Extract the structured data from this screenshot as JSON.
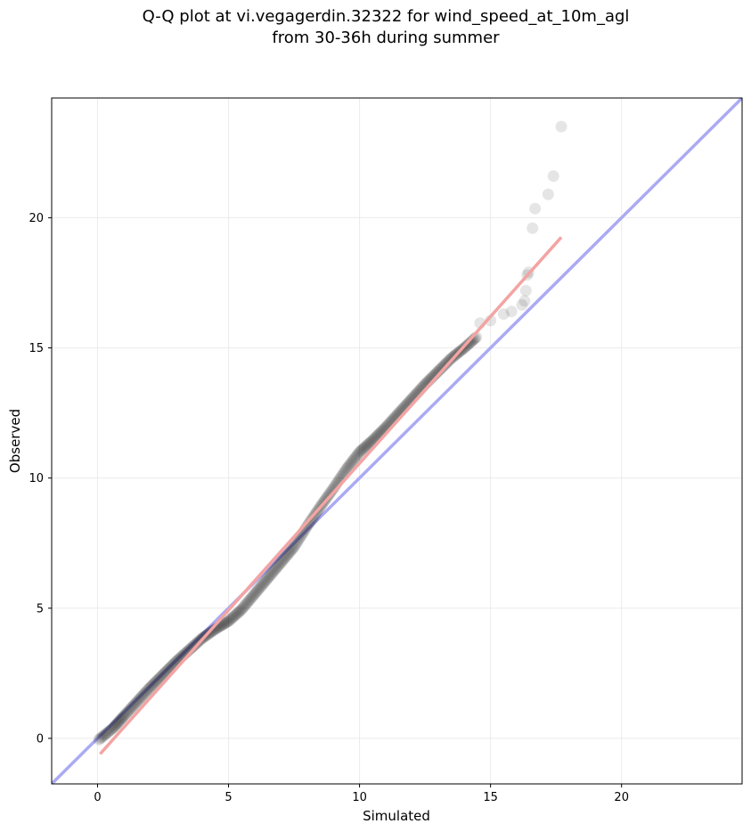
{
  "chart_data": {
    "type": "scatter",
    "title": "Q-Q plot at vi.vegagerdin.32322 for wind_speed_at_10m_agl",
    "subtitle": "from 30-36h during summer",
    "xlabel": "Simulated",
    "ylabel": "Observed",
    "xlim": [
      -1.75,
      24.6
    ],
    "ylim": [
      -1.75,
      24.6
    ],
    "xticks": [
      0,
      5,
      10,
      15,
      20
    ],
    "yticks": [
      0,
      5,
      10,
      15,
      20
    ],
    "grid": true,
    "colors": {
      "points": "#000000",
      "identity_line": "#aaaaf4",
      "fit_line": "#f4a3a3",
      "grid": "#ebebeb"
    },
    "identity_line": {
      "slope": 1,
      "intercept": 0
    },
    "fit_line": {
      "x": [
        0.1,
        17.7
      ],
      "y": [
        -0.6,
        19.25
      ]
    },
    "point_segments": [
      [
        [
          0.05,
          -0.05
        ],
        [
          0.6,
          0.4
        ],
        [
          1.0,
          0.85
        ],
        [
          1.5,
          1.4
        ],
        [
          2.0,
          1.95
        ],
        [
          2.5,
          2.45
        ],
        [
          3.0,
          2.95
        ],
        [
          3.5,
          3.4
        ],
        [
          4.0,
          3.85
        ],
        [
          4.5,
          4.2
        ],
        [
          5.0,
          4.5
        ],
        [
          5.5,
          4.95
        ],
        [
          6.0,
          5.55
        ],
        [
          6.5,
          6.15
        ],
        [
          7.0,
          6.75
        ],
        [
          7.5,
          7.35
        ],
        [
          8.0,
          8.15
        ],
        [
          8.5,
          8.9
        ],
        [
          9.0,
          9.6
        ],
        [
          9.5,
          10.35
        ],
        [
          10.0,
          11.0
        ],
        [
          10.5,
          11.45
        ],
        [
          11.0,
          11.95
        ],
        [
          11.5,
          12.5
        ],
        [
          12.0,
          13.05
        ],
        [
          12.5,
          13.6
        ],
        [
          13.0,
          14.1
        ],
        [
          13.5,
          14.6
        ],
        [
          14.0,
          15.0
        ],
        [
          14.5,
          15.45
        ]
      ]
    ],
    "sparse_points": [
      [
        14.6,
        15.95
      ],
      [
        15.0,
        16.05
      ],
      [
        15.5,
        16.3
      ],
      [
        15.8,
        16.4
      ],
      [
        16.2,
        16.65
      ],
      [
        16.3,
        16.8
      ],
      [
        16.35,
        17.2
      ],
      [
        16.4,
        17.8
      ],
      [
        16.45,
        17.9
      ],
      [
        16.6,
        19.6
      ],
      [
        16.7,
        20.35
      ],
      [
        17.2,
        20.9
      ],
      [
        17.4,
        21.6
      ],
      [
        17.7,
        23.5
      ]
    ]
  }
}
